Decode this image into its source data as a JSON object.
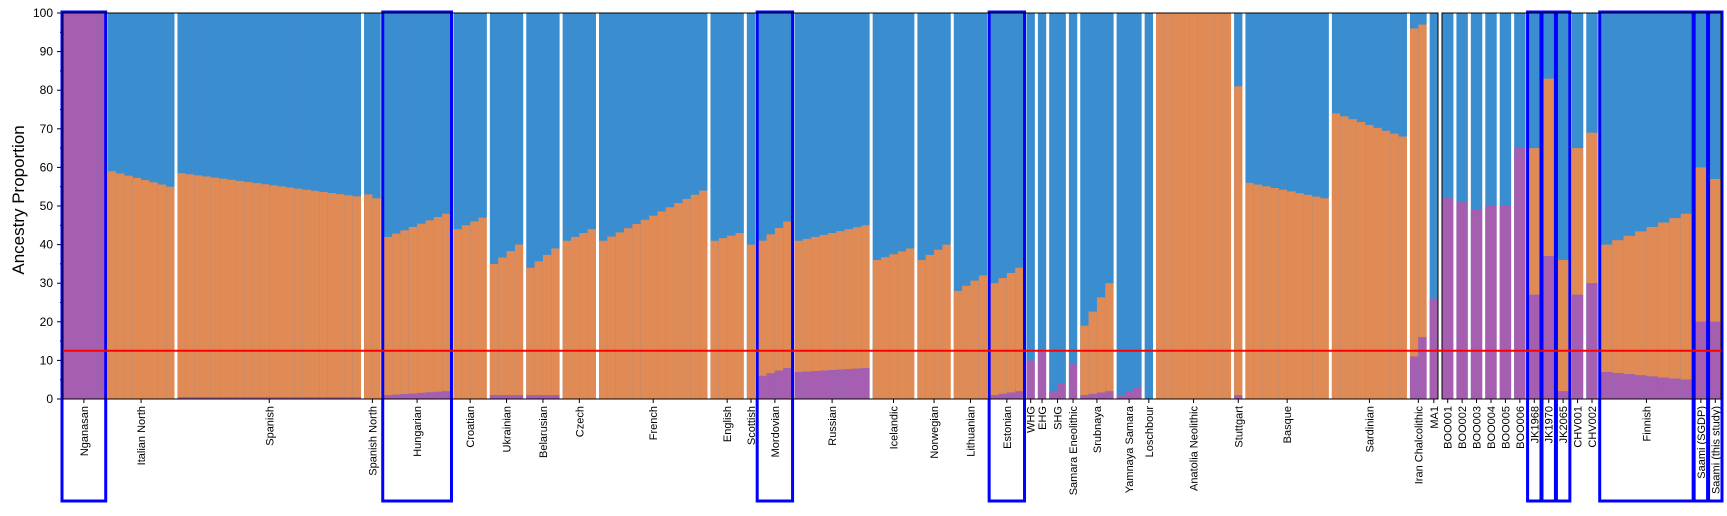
{
  "chart_data": {
    "type": "bar",
    "stacked": true,
    "ylabel": "Ancestry Proportion",
    "ylim": [
      0,
      100
    ],
    "yticks": [
      0,
      10,
      20,
      30,
      40,
      50,
      60,
      70,
      80,
      90,
      100
    ],
    "colors": {
      "component_1": "#a65fb0",
      "component_2": "#e08a55",
      "component_3": "#3a8dce",
      "reference_line": "#ff0000",
      "highlight_box": "#0000ff"
    },
    "reference_line_value": 12.5,
    "panels": [
      {
        "groups": [
          {
            "label": "Nganasan",
            "n": 5,
            "c1": [
              100,
              100
            ],
            "c2": [
              0,
              0
            ],
            "highlight": true
          },
          {
            "label": "Italian North",
            "n": 8,
            "c1": [
              0,
              0
            ],
            "c2": [
              59,
              55
            ],
            "highlight": false
          },
          {
            "label": "Spanish",
            "n": 22,
            "c1": [
              0.5,
              0.5
            ],
            "c2": [
              58,
              52
            ],
            "highlight": false
          },
          {
            "label": "Spanish North",
            "n": 2,
            "c1": [
              0,
              0
            ],
            "c2": [
              53,
              52
            ],
            "highlight": false
          },
          {
            "label": "Hungarian",
            "n": 8,
            "c1": [
              1,
              2
            ],
            "c2": [
              41,
              46
            ],
            "highlight": true
          },
          {
            "label": "Croatian",
            "n": 4,
            "c1": [
              0,
              0
            ],
            "c2": [
              44,
              47
            ],
            "highlight": false
          },
          {
            "label": "Ukrainian",
            "n": 4,
            "c1": [
              1,
              1
            ],
            "c2": [
              34,
              39
            ],
            "highlight": false
          },
          {
            "label": "Belarusian",
            "n": 4,
            "c1": [
              1,
              1
            ],
            "c2": [
              33,
              38
            ],
            "highlight": false
          },
          {
            "label": "Czech",
            "n": 4,
            "c1": [
              0,
              0
            ],
            "c2": [
              41,
              44
            ],
            "highlight": false
          },
          {
            "label": "French",
            "n": 13,
            "c1": [
              0,
              0
            ],
            "c2": [
              41,
              54
            ],
            "highlight": false
          },
          {
            "label": "English",
            "n": 4,
            "c1": [
              0,
              0
            ],
            "c2": [
              41,
              43
            ],
            "highlight": false
          },
          {
            "label": "Scottish",
            "n": 1,
            "c1": [
              0,
              0
            ],
            "c2": [
              40,
              40
            ],
            "highlight": false
          },
          {
            "label": "Mordovian",
            "n": 4,
            "c1": [
              6,
              8
            ],
            "c2": [
              35,
              38
            ],
            "highlight": true
          },
          {
            "label": "Russian",
            "n": 9,
            "c1": [
              7,
              8
            ],
            "c2": [
              34,
              37
            ],
            "highlight": false
          },
          {
            "label": "Icelandic",
            "n": 5,
            "c1": [
              0,
              0
            ],
            "c2": [
              36,
              39
            ],
            "highlight": false
          },
          {
            "label": "Norwegian",
            "n": 4,
            "c1": [
              0,
              0
            ],
            "c2": [
              36,
              40
            ],
            "highlight": false
          },
          {
            "label": "Lithuanian",
            "n": 4,
            "c1": [
              0,
              0
            ],
            "c2": [
              28,
              32
            ],
            "highlight": false
          },
          {
            "label": "Estonian",
            "n": 4,
            "c1": [
              1,
              2
            ],
            "c2": [
              29,
              32
            ],
            "highlight": true
          },
          {
            "label": "WHG",
            "n": 1,
            "c1": [
              10,
              10
            ],
            "c2": [
              0,
              0
            ],
            "highlight": false
          },
          {
            "label": "EHG",
            "n": 1,
            "c1": [
              13,
              13
            ],
            "c2": [
              0,
              0
            ],
            "highlight": false
          },
          {
            "label": "SHG",
            "n": 2,
            "c1": [
              2,
              4
            ],
            "c2": [
              0,
              0
            ],
            "highlight": false
          },
          {
            "label": "Samara Eneolithic",
            "n": 1,
            "c1": [
              9,
              9
            ],
            "c2": [
              0,
              0
            ],
            "highlight": false
          },
          {
            "label": "Srubnaya",
            "n": 4,
            "c1": [
              1,
              2
            ],
            "c2": [
              18,
              28
            ],
            "highlight": false
          },
          {
            "label": "Yamnaya Samara",
            "n": 3,
            "c1": [
              1,
              3
            ],
            "c2": [
              0,
              0
            ],
            "highlight": false
          },
          {
            "label": "Loschbour",
            "n": 1,
            "c1": [
              0,
              0
            ],
            "c2": [
              0,
              0
            ],
            "highlight": false
          },
          {
            "label": "Anatolia Neolithic",
            "n": 9,
            "c1": [
              0,
              0
            ],
            "c2": [
              100,
              100
            ],
            "highlight": false
          },
          {
            "label": "Stuttgart",
            "n": 1,
            "c1": [
              1,
              1
            ],
            "c2": [
              80,
              80
            ],
            "highlight": false
          },
          {
            "label": "Basque",
            "n": 10,
            "c1": [
              0,
              0
            ],
            "c2": [
              56,
              52
            ],
            "highlight": false
          },
          {
            "label": "Sardinian",
            "n": 9,
            "c1": [
              0,
              0
            ],
            "c2": [
              74,
              68
            ],
            "highlight": false
          },
          {
            "label": "Iran Chalcolithic",
            "n": 2,
            "c1": [
              11,
              16
            ],
            "c2": [
              85,
              81
            ],
            "highlight": false
          },
          {
            "label": "MA1",
            "n": 1,
            "c1": [
              26,
              26
            ],
            "c2": [
              0,
              0
            ],
            "highlight": false
          }
        ]
      },
      {
        "groups": [
          {
            "label": "BOO001",
            "n": 1,
            "c1": [
              52,
              52
            ],
            "c2": [
              0,
              0
            ],
            "highlight": false
          },
          {
            "label": "BOO002",
            "n": 1,
            "c1": [
              51,
              51
            ],
            "c2": [
              0,
              0
            ],
            "highlight": false
          },
          {
            "label": "BOO003",
            "n": 1,
            "c1": [
              49,
              49
            ],
            "c2": [
              0,
              0
            ],
            "highlight": false
          },
          {
            "label": "BOO004",
            "n": 1,
            "c1": [
              50,
              50
            ],
            "c2": [
              0,
              0
            ],
            "highlight": false
          },
          {
            "label": "BOO005",
            "n": 1,
            "c1": [
              50,
              50
            ],
            "c2": [
              0,
              0
            ],
            "highlight": false
          },
          {
            "label": "BOO006",
            "n": 1,
            "c1": [
              65,
              65
            ],
            "c2": [
              0,
              0
            ],
            "highlight": false
          },
          {
            "label": "JK1968",
            "n": 1,
            "c1": [
              27,
              27
            ],
            "c2": [
              38,
              38
            ],
            "highlight": true
          },
          {
            "label": "JK1970",
            "n": 1,
            "c1": [
              37,
              37
            ],
            "c2": [
              46,
              46
            ],
            "highlight": true
          },
          {
            "label": "JK2065",
            "n": 1,
            "c1": [
              2,
              2
            ],
            "c2": [
              34,
              34
            ],
            "highlight": true
          },
          {
            "label": "CHV001",
            "n": 1,
            "c1": [
              27,
              27
            ],
            "c2": [
              38,
              38
            ],
            "highlight": false
          },
          {
            "label": "CHV002",
            "n": 1,
            "c1": [
              30,
              30
            ],
            "c2": [
              39,
              39
            ],
            "highlight": false
          },
          {
            "label": "Finnish",
            "n": 8,
            "c1": [
              7,
              5
            ],
            "c2": [
              33,
              43
            ],
            "highlight": true
          },
          {
            "label": "Saami (SGDP)",
            "n": 1,
            "c1": [
              20,
              20
            ],
            "c2": [
              40,
              40
            ],
            "highlight": true
          },
          {
            "label": "Saami (this study)",
            "n": 1,
            "c1": [
              20,
              20
            ],
            "c2": [
              37,
              37
            ],
            "highlight": true
          }
        ]
      }
    ]
  }
}
